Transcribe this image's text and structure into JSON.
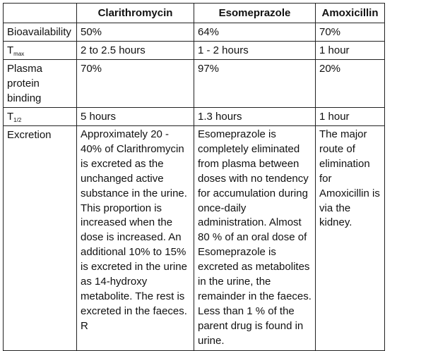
{
  "table": {
    "headers": [
      "",
      "Clarithromycin",
      "Esomeprazole",
      "Amoxicillin"
    ],
    "rows": [
      {
        "label": "Bioavailability",
        "cells": [
          "50%",
          "64%",
          "70%"
        ]
      },
      {
        "label_main": "T",
        "label_sub": "max",
        "cells": [
          "2 to 2.5 hours",
          "1 - 2 hours",
          "1 hour"
        ]
      },
      {
        "label": "Plasma protein binding",
        "cells": [
          "70%",
          "97%",
          "20%"
        ]
      },
      {
        "label_main": "T",
        "label_sub": "1/2",
        "cells": [
          "5 hours",
          "1.3 hours",
          "1 hour"
        ]
      },
      {
        "label": "Excretion",
        "cells": [
          "Approximately 20 - 40% of Clarithromycin is excreted as the unchanged active substance in the urine. This proportion is increased when the dose is increased. An additional 10% to 15% is excreted in the urine as 14-hydroxy metabolite. The rest is excreted in the faeces. R",
          "Esomeprazole is completely eliminated from plasma between doses with no tendency for accumulation during once-daily administration. Almost 80 % of an oral dose of Esomeprazole is excreted as metabolites in the urine, the remainder in the faeces. Less than 1 % of the parent drug is found in urine.",
          "The major route of elimination for Amoxicillin is via the kidney."
        ]
      }
    ]
  }
}
